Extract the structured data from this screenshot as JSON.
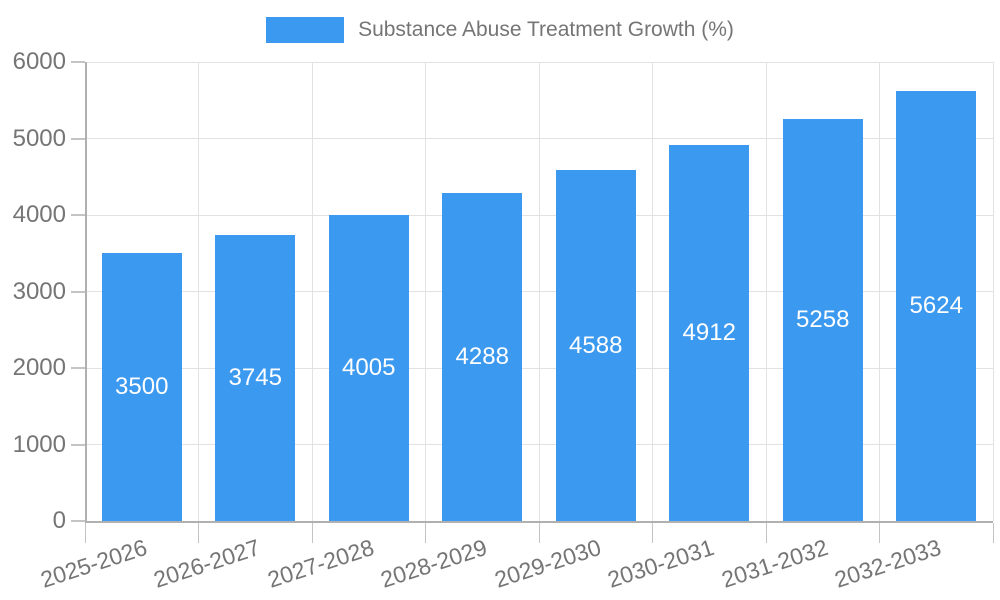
{
  "chart_data": {
    "type": "bar",
    "title": "Substance Abuse Treatment Growth (%)",
    "legend": {
      "position": "top",
      "label": "Substance Abuse Treatment Growth (%)"
    },
    "categories": [
      "2025-2026",
      "2026-2027",
      "2027-2028",
      "2028-2029",
      "2029-2030",
      "2030-2031",
      "2031-2032",
      "2032-2033"
    ],
    "values": [
      3500,
      3745,
      4005,
      4288,
      4588,
      4912,
      5258,
      5624
    ],
    "value_labels_shown": true,
    "xlabel": "",
    "ylabel": "",
    "ylim": [
      0,
      6000
    ],
    "y_ticks": [
      0,
      1000,
      2000,
      3000,
      4000,
      5000,
      6000
    ],
    "grid": true,
    "colors": {
      "bar": "#3B99F0",
      "bar_value_text": "#FFFFFF",
      "axis_text": "#757575",
      "gridline": "#E2E2E2",
      "axis_line": "#B0B0B0",
      "tick_mark": "#C4C4C4"
    }
  }
}
